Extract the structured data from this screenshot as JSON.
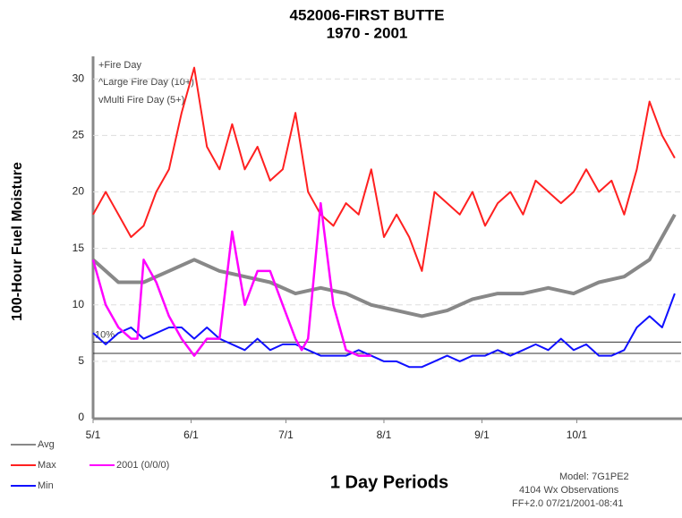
{
  "chart_data": {
    "type": "line",
    "title": "452006-FIRST BUTTE",
    "subtitle": "1970 - 2001",
    "y_label": "100-Hour Fuel Moisture",
    "x_label": "1 Day Periods",
    "xlim": [
      0,
      186
    ],
    "xticks": [
      {
        "value": 0,
        "label": "5/1"
      },
      {
        "value": 31,
        "label": "6/1"
      },
      {
        "value": 61,
        "label": "7/1"
      },
      {
        "value": 92,
        "label": "8/1"
      },
      {
        "value": 123,
        "label": "9/1"
      },
      {
        "value": 153,
        "label": "10/1"
      }
    ],
    "ylim": [
      0,
      32
    ],
    "yticks": [
      0,
      5,
      10,
      15,
      20,
      25,
      30
    ],
    "grid": true,
    "fire_legend": [
      "+Fire Day",
      "^Large Fire Day (10+)",
      "vMulti Fire Day (5+)"
    ],
    "reference_lines": [
      {
        "value": 6.7,
        "label": "10%"
      },
      {
        "value": 5.7
      }
    ],
    "notes": [
      "Model: 7G1PE2",
      "4104 Wx Observations",
      "FF+2.0 07/21/2001-08:41"
    ],
    "series": [
      {
        "name": "Avg",
        "color": "#888888",
        "width": 4,
        "x": [
          0,
          8,
          16,
          24,
          32,
          40,
          48,
          56,
          64,
          72,
          80,
          88,
          96,
          104,
          112,
          120,
          128,
          136,
          144,
          152,
          160,
          168,
          176,
          184
        ],
        "values": [
          14,
          12,
          12,
          13,
          14,
          13,
          12.5,
          12,
          11,
          11.5,
          11,
          10,
          9.5,
          9,
          9.5,
          10.5,
          11,
          11,
          11.5,
          11,
          12,
          12.5,
          14,
          18
        ]
      },
      {
        "name": "Max",
        "color": "#ff2020",
        "width": 2,
        "x": [
          0,
          4,
          8,
          12,
          16,
          20,
          24,
          28,
          32,
          36,
          40,
          44,
          48,
          52,
          56,
          60,
          64,
          68,
          72,
          76,
          80,
          84,
          88,
          92,
          96,
          100,
          104,
          108,
          112,
          116,
          120,
          124,
          128,
          132,
          136,
          140,
          144,
          148,
          152,
          156,
          160,
          164,
          168,
          172,
          176,
          180,
          184
        ],
        "values": [
          18,
          20,
          18,
          16,
          17,
          20,
          22,
          27,
          31,
          24,
          22,
          26,
          22,
          24,
          21,
          22,
          27,
          20,
          18,
          17,
          19,
          18,
          22,
          16,
          18,
          16,
          13,
          20,
          19,
          18,
          20,
          17,
          19,
          20,
          18,
          21,
          20,
          19,
          20,
          22,
          20,
          21,
          18,
          22,
          28,
          25,
          23
        ]
      },
      {
        "name": "Min",
        "color": "#1010ff",
        "width": 2,
        "x": [
          0,
          4,
          8,
          12,
          16,
          20,
          24,
          28,
          32,
          36,
          40,
          44,
          48,
          52,
          56,
          60,
          64,
          68,
          72,
          76,
          80,
          84,
          88,
          92,
          96,
          100,
          104,
          108,
          112,
          116,
          120,
          124,
          128,
          132,
          136,
          140,
          144,
          148,
          152,
          156,
          160,
          164,
          168,
          172,
          176,
          180,
          184
        ],
        "values": [
          7.5,
          6.5,
          7.5,
          8,
          7,
          7.5,
          8,
          8,
          7,
          8,
          7,
          6.5,
          6,
          7,
          6,
          6.5,
          6.5,
          6,
          5.5,
          5.5,
          5.5,
          6,
          5.5,
          5,
          5,
          4.5,
          4.5,
          5,
          5.5,
          5,
          5.5,
          5.5,
          6,
          5.5,
          6,
          6.5,
          6,
          7,
          6,
          6.5,
          5.5,
          5.5,
          6,
          8,
          9,
          8,
          11
        ]
      },
      {
        "name": "2001 (0/0/0)",
        "color": "#ff00ff",
        "width": 2.5,
        "x": [
          0,
          4,
          8,
          12,
          14,
          16,
          20,
          24,
          28,
          32,
          36,
          40,
          44,
          48,
          52,
          56,
          60,
          64,
          66,
          68,
          72,
          76,
          80,
          84,
          88
        ],
        "values": [
          14,
          10,
          8,
          7,
          7,
          14,
          12,
          9,
          7,
          5.5,
          7,
          7,
          16.5,
          10,
          13,
          13,
          10,
          7,
          6,
          7,
          19,
          10,
          6,
          5.5,
          5.5
        ]
      }
    ]
  }
}
